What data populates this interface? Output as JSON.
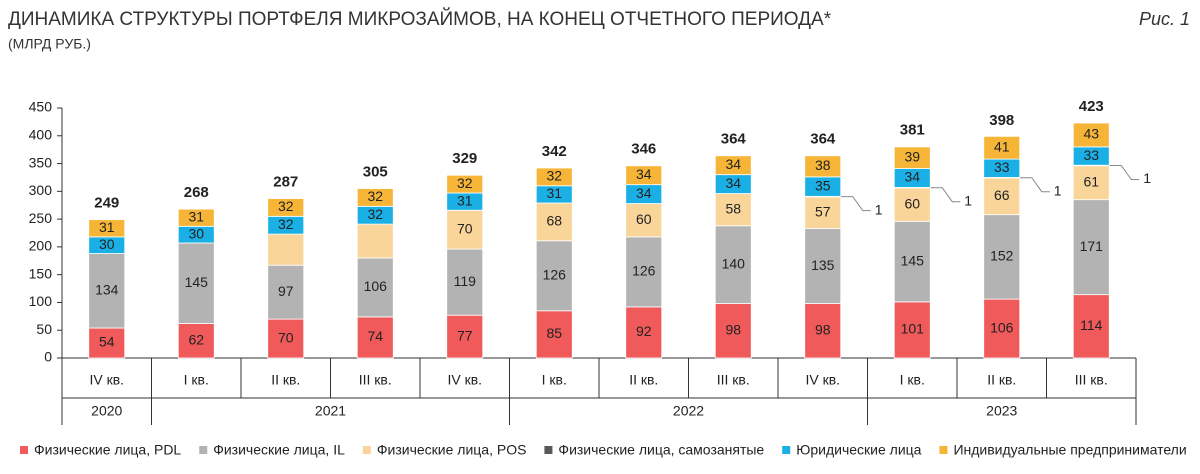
{
  "chart_data": {
    "type": "stacked-bar",
    "title": "ДИНАМИКА СТРУКТУРЫ ПОРТФЕЛЯ МИКРОЗАЙМОВ, НА КОНЕЦ ОТЧЕТНОГО ПЕРИОДА*",
    "subtitle": "(МЛРД РУБ.)",
    "figure_label": "Рис. 1",
    "categories": [
      "IV кв.",
      "I кв.",
      "II кв.",
      "III кв.",
      "IV кв.",
      "I кв.",
      "II кв.",
      "III кв.",
      "IV кв.",
      "I кв.",
      "II кв.",
      "III кв."
    ],
    "category_groups": [
      "2020",
      "2021",
      "2021",
      "2021",
      "2021",
      "2022",
      "2022",
      "2022",
      "2022",
      "2023",
      "2023",
      "2023"
    ],
    "ylim": [
      0,
      450
    ],
    "yticks": [
      0,
      50,
      100,
      150,
      200,
      250,
      300,
      350,
      400,
      450
    ],
    "series": [
      {
        "name": "Физические лица, PDL",
        "color": "#f05a5a",
        "values": [
          54,
          62,
          70,
          74,
          77,
          85,
          92,
          98,
          98,
          101,
          106,
          114
        ]
      },
      {
        "name": "Физические лица, IL",
        "color": "#b3b3b3",
        "values": [
          134,
          145,
          97,
          106,
          119,
          126,
          126,
          140,
          135,
          145,
          152,
          171
        ]
      },
      {
        "name": "Физические лица, POS",
        "color": "#fad59a",
        "values": [
          null,
          null,
          56,
          61,
          70,
          68,
          60,
          58,
          57,
          60,
          66,
          61
        ],
        "value_labels": [
          null,
          null,
          null,
          null,
          "70",
          "68",
          "60",
          "58",
          "57",
          "60",
          "66",
          "61"
        ]
      },
      {
        "name": "Физические лица, самозанятые",
        "color": "#595959",
        "values": [
          null,
          null,
          null,
          null,
          null,
          null,
          null,
          null,
          1,
          1,
          1,
          1
        ],
        "label_position": "outside"
      },
      {
        "name": "Юридические лица",
        "color": "#1ab0e6",
        "values": [
          30,
          30,
          32,
          32,
          31,
          31,
          34,
          34,
          35,
          34,
          33,
          33
        ]
      },
      {
        "name": "Индивидуальные предприниматели",
        "color": "#f7b538",
        "values": [
          31,
          31,
          32,
          32,
          32,
          32,
          34,
          34,
          38,
          39,
          41,
          43
        ]
      }
    ],
    "totals": [
      249,
      268,
      287,
      305,
      329,
      342,
      346,
      364,
      364,
      381,
      398,
      423
    ]
  }
}
